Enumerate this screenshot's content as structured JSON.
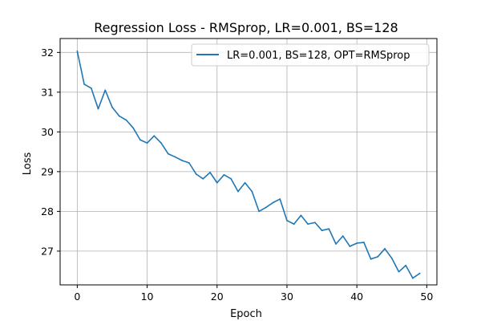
{
  "chart_data": {
    "type": "line",
    "title": "Regression Loss - RMSprop, LR=0.001, BS=128",
    "xlabel": "Epoch",
    "ylabel": "Loss",
    "xlim": [
      -2.45,
      51.45
    ],
    "ylim": [
      26.15,
      32.35
    ],
    "xticks": [
      0,
      10,
      20,
      30,
      40,
      50
    ],
    "yticks": [
      27,
      28,
      29,
      30,
      31,
      32
    ],
    "grid": true,
    "legend_position": "top-right",
    "colors": {
      "series": "#1f77b4",
      "grid": "#b0b0b0",
      "axis": "#000000"
    },
    "series": [
      {
        "name": "LR=0.001, BS=128, OPT=RMSprop",
        "x": [
          0,
          1,
          2,
          3,
          4,
          5,
          6,
          7,
          8,
          9,
          10,
          11,
          12,
          13,
          14,
          15,
          16,
          17,
          18,
          19,
          20,
          21,
          22,
          23,
          24,
          25,
          26,
          27,
          28,
          29,
          30,
          31,
          32,
          33,
          34,
          35,
          36,
          37,
          38,
          39,
          40,
          41,
          42,
          43,
          44,
          45,
          46,
          47,
          48,
          49
        ],
        "values": [
          32.03,
          31.2,
          31.1,
          30.58,
          31.05,
          30.62,
          30.4,
          30.3,
          30.1,
          29.8,
          29.72,
          29.9,
          29.72,
          29.45,
          29.37,
          29.28,
          29.22,
          28.94,
          28.82,
          28.98,
          28.72,
          28.92,
          28.82,
          28.5,
          28.72,
          28.5,
          28.0,
          28.1,
          28.22,
          28.31,
          27.77,
          27.68,
          27.9,
          27.68,
          27.72,
          27.52,
          27.56,
          27.18,
          27.38,
          27.12,
          27.2,
          27.22,
          26.8,
          26.86,
          27.06,
          26.82,
          26.48,
          26.64,
          26.32,
          26.44
        ]
      }
    ]
  }
}
